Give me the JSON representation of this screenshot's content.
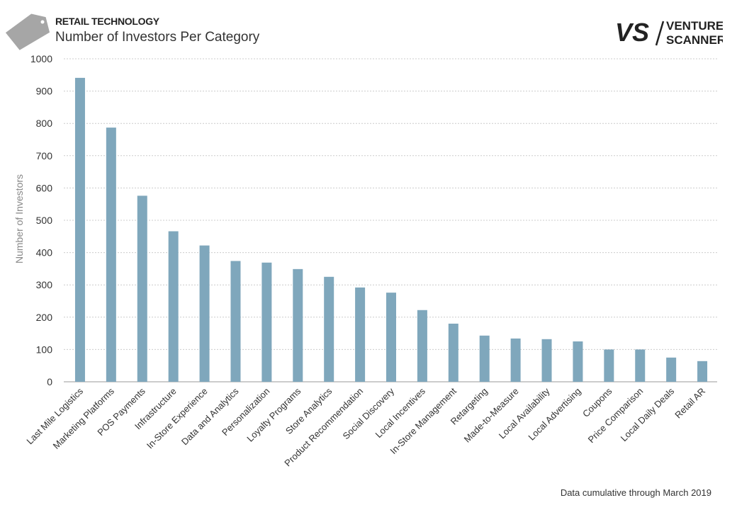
{
  "header": {
    "kicker": "RETAIL TECHNOLOGY",
    "title": "Number of Investors Per Category",
    "logo_text": "VENTURE SCANNER",
    "logo_mark": "VS"
  },
  "footnote": "Data cumulative through March 2019",
  "colors": {
    "bar": "#7fa7bc",
    "grid": "#cccccc",
    "tag": "#a6a6a6"
  },
  "chart_data": {
    "type": "bar",
    "title": "Number of Investors Per Category",
    "xlabel": "",
    "ylabel": "Number of Investors",
    "ylim": [
      0,
      1000
    ],
    "yticks": [
      0,
      100,
      200,
      300,
      400,
      500,
      600,
      700,
      800,
      900,
      1000
    ],
    "grid": true,
    "categories": [
      "Last Mile Logistics",
      "Marketing Platforms",
      "POS Payments",
      "Infrastructure",
      "In-Store Experience",
      "Data and Analytics",
      "Personalization",
      "Loyalty Programs",
      "Store Analytics",
      "Product Recommendation",
      "Social Discovery",
      "Local Incentives",
      "In-Store Management",
      "Retargeting",
      "Made-to-Measure",
      "Local Availability",
      "Local Advertising",
      "Coupons",
      "Price Comparison",
      "Local Daily Deals",
      "Retail AR"
    ],
    "values": [
      941,
      787,
      576,
      466,
      422,
      374,
      369,
      349,
      325,
      292,
      276,
      222,
      180,
      143,
      134,
      132,
      125,
      100,
      100,
      75,
      64
    ]
  }
}
